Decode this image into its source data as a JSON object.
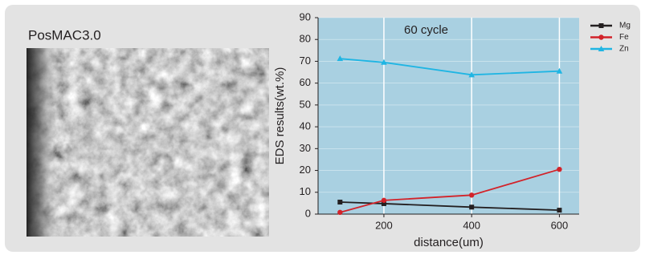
{
  "label": "PosMAC3.0",
  "chart_data": {
    "type": "line",
    "annotation": "60 cycle",
    "x_label": "distance(um)",
    "y_label": "EDS results(wt.%)",
    "x": [
      100,
      200,
      400,
      600
    ],
    "series": [
      {
        "name": "Mg",
        "color": "#231f20",
        "marker": "square",
        "values": [
          5.5,
          4.8,
          3.2,
          1.8
        ]
      },
      {
        "name": "Fe",
        "color": "#d2232a",
        "marker": "circle",
        "values": [
          0.8,
          6.3,
          8.7,
          20.5
        ]
      },
      {
        "name": "Zn",
        "color": "#1fb5e3",
        "marker": "triangle",
        "values": [
          71.2,
          69.5,
          63.8,
          65.5
        ]
      }
    ],
    "xlim": [
      50,
      645
    ],
    "xticks": [
      200,
      400,
      600
    ],
    "ylim": [
      0,
      90
    ],
    "yticks": [
      0,
      10,
      20,
      30,
      40,
      50,
      60,
      70,
      80,
      90
    ],
    "grid": true,
    "plot_background": "#a9d0e1",
    "legend": "upper right"
  }
}
